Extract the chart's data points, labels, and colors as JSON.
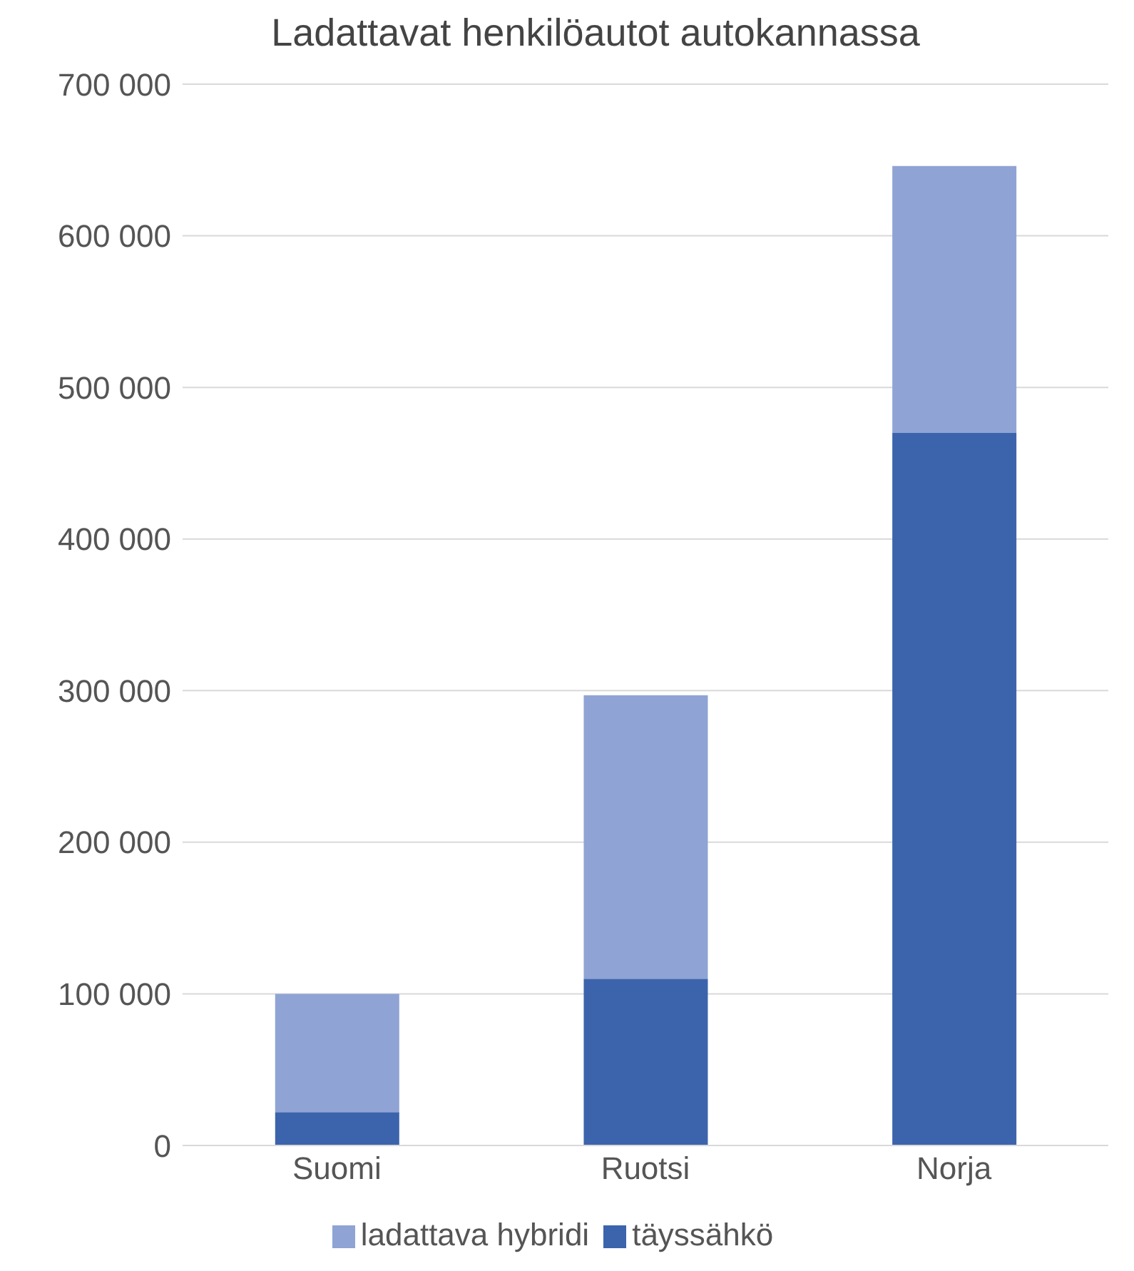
{
  "chart_data": {
    "type": "bar",
    "title": "Ladattavat henkilöautot autokannassa",
    "categories": [
      "Suomi",
      "Ruotsi",
      "Norja"
    ],
    "stacked": true,
    "series": [
      {
        "name": "täyssähkö",
        "color": "#3c64ac",
        "values": [
          22000,
          110000,
          470000
        ]
      },
      {
        "name": "ladattava hybridi",
        "color": "#8fa4d4",
        "values": [
          78000,
          187000,
          176000
        ]
      }
    ],
    "ylim": [
      0,
      700000
    ],
    "yticks": [
      {
        "value": 0,
        "label": "0"
      },
      {
        "value": 100000,
        "label": "100 000"
      },
      {
        "value": 200000,
        "label": "200 000"
      },
      {
        "value": 300000,
        "label": "300 000"
      },
      {
        "value": 400000,
        "label": "400 000"
      },
      {
        "value": 500000,
        "label": "500 000"
      },
      {
        "value": 600000,
        "label": "600 000"
      },
      {
        "value": 700000,
        "label": "700 000"
      }
    ],
    "grid": "y",
    "legend": "bottom"
  }
}
